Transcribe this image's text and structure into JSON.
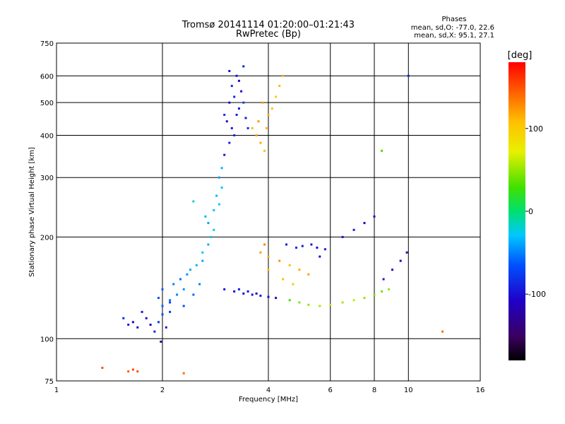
{
  "chart_data": {
    "type": "scatter",
    "title": "Tromsø 20141114 01:20:00–01:21:43",
    "subtitle": "RwPretec (Bp)",
    "xlabel": "Frequency [MHz]",
    "ylabel": "Stationary phase Virtual Height [km]",
    "x_scale": "log",
    "y_scale": "log",
    "xlim": [
      1,
      16
    ],
    "ylim": [
      75,
      750
    ],
    "x_ticks": [
      1,
      2,
      4,
      6,
      8,
      10,
      16
    ],
    "x_tick_labels": [
      "1",
      "2",
      "4",
      "6",
      "8",
      "10",
      "16"
    ],
    "y_ticks": [
      75,
      100,
      200,
      300,
      400,
      500,
      600,
      750
    ],
    "y_tick_labels": [
      "75",
      "100",
      "200",
      "300",
      "400",
      "500",
      "600",
      "750"
    ],
    "grid": true,
    "legend": {
      "title": "Phases",
      "lines": [
        "mean, sd,O: -77.0, 22.6",
        "mean, sd,X:  95.1, 27.1"
      ],
      "placement": "top-right"
    },
    "colorbar": {
      "label": "[deg]",
      "range": [
        -180,
        180
      ],
      "ticks": [
        100,
        0,
        -100
      ],
      "tick_labels": [
        "100",
        "0",
        "-100"
      ],
      "colormap": "rainbow (black-purple-blue-cyan-green-yellow-orange-red)",
      "placement": "right"
    },
    "clusters": [
      {
        "name": "low-foot",
        "points": [
          [
            1.9,
            105,
            -90
          ],
          [
            1.85,
            110,
            -110
          ],
          [
            1.95,
            112,
            -80
          ],
          [
            1.8,
            115,
            -100
          ],
          [
            2.0,
            118,
            -70
          ],
          [
            1.75,
            120,
            -95
          ],
          [
            1.7,
            108,
            -105
          ],
          [
            1.6,
            110,
            -90
          ],
          [
            1.55,
            115,
            -85
          ],
          [
            2.05,
            108,
            -95
          ],
          [
            2.1,
            120,
            -75
          ],
          [
            1.65,
            112,
            -110
          ],
          [
            1.98,
            98,
            -130
          ]
        ]
      },
      {
        "name": "lower-ramp",
        "points": [
          [
            2.0,
            125,
            -60
          ],
          [
            2.1,
            130,
            -55
          ],
          [
            2.2,
            135,
            -50
          ],
          [
            2.3,
            140,
            -45
          ],
          [
            2.0,
            140,
            -60
          ],
          [
            2.15,
            145,
            -50
          ],
          [
            2.25,
            150,
            -55
          ],
          [
            2.35,
            155,
            -45
          ],
          [
            2.4,
            160,
            -40
          ],
          [
            2.5,
            165,
            -35
          ],
          [
            2.6,
            170,
            -40
          ],
          [
            2.3,
            125,
            -65
          ],
          [
            2.45,
            135,
            -60
          ],
          [
            2.55,
            145,
            -50
          ],
          [
            2.1,
            128,
            -70
          ],
          [
            1.95,
            132,
            -65
          ]
        ]
      },
      {
        "name": "upper-ramp",
        "points": [
          [
            2.6,
            180,
            -30
          ],
          [
            2.7,
            190,
            -35
          ],
          [
            2.75,
            200,
            -30
          ],
          [
            2.8,
            210,
            -25
          ],
          [
            2.7,
            220,
            -40
          ],
          [
            2.65,
            230,
            -35
          ],
          [
            2.8,
            240,
            -30
          ],
          [
            2.9,
            250,
            -25
          ],
          [
            2.85,
            265,
            -35
          ],
          [
            2.95,
            280,
            -30
          ],
          [
            2.9,
            300,
            -40
          ],
          [
            2.95,
            320,
            -35
          ],
          [
            2.45,
            255,
            -20
          ]
        ]
      },
      {
        "name": "high-o-trace",
        "points": [
          [
            3.0,
            350,
            -95
          ],
          [
            3.1,
            380,
            -90
          ],
          [
            3.2,
            400,
            -85
          ],
          [
            3.15,
            420,
            -95
          ],
          [
            3.05,
            440,
            -100
          ],
          [
            3.25,
            460,
            -90
          ],
          [
            3.3,
            480,
            -95
          ],
          [
            3.1,
            500,
            -105
          ],
          [
            3.2,
            520,
            -90
          ],
          [
            3.35,
            540,
            -100
          ],
          [
            3.15,
            560,
            -85
          ],
          [
            3.3,
            580,
            -110
          ],
          [
            3.25,
            600,
            -95
          ],
          [
            3.1,
            620,
            -100
          ],
          [
            3.4,
            640,
            -90
          ],
          [
            3.0,
            460,
            -80
          ],
          [
            3.45,
            450,
            -95
          ],
          [
            3.5,
            420,
            -85
          ],
          [
            3.4,
            500,
            -75
          ]
        ]
      },
      {
        "name": "high-x-trace",
        "points": [
          [
            3.6,
            420,
            110
          ],
          [
            3.7,
            400,
            120
          ],
          [
            3.8,
            380,
            115
          ],
          [
            3.9,
            360,
            105
          ],
          [
            3.75,
            440,
            125
          ],
          [
            3.95,
            420,
            110
          ],
          [
            4.0,
            460,
            115
          ],
          [
            4.1,
            480,
            105
          ],
          [
            3.85,
            500,
            120
          ],
          [
            4.2,
            520,
            100
          ],
          [
            4.3,
            560,
            110
          ],
          [
            4.4,
            600,
            115
          ]
        ]
      },
      {
        "name": "e-region-o",
        "points": [
          [
            3.0,
            140,
            -100
          ],
          [
            3.2,
            138,
            -110
          ],
          [
            3.4,
            136,
            -105
          ],
          [
            3.6,
            135,
            -100
          ],
          [
            3.8,
            134,
            -95
          ],
          [
            4.0,
            133,
            -100
          ],
          [
            4.2,
            132,
            -105
          ],
          [
            3.3,
            140,
            -90
          ],
          [
            3.5,
            138,
            -95
          ],
          [
            3.7,
            136,
            -110
          ]
        ]
      },
      {
        "name": "mid-x",
        "points": [
          [
            3.8,
            180,
            120
          ],
          [
            4.0,
            175,
            115
          ],
          [
            4.3,
            170,
            125
          ],
          [
            4.6,
            165,
            110
          ],
          [
            4.9,
            160,
            115
          ],
          [
            5.2,
            155,
            120
          ],
          [
            4.4,
            150,
            105
          ],
          [
            4.7,
            145,
            100
          ],
          [
            4.0,
            160,
            110
          ],
          [
            3.9,
            190,
            130
          ]
        ]
      },
      {
        "name": "mid-o",
        "points": [
          [
            4.5,
            190,
            -90
          ],
          [
            5.0,
            188,
            -95
          ],
          [
            5.5,
            186,
            -100
          ],
          [
            5.8,
            184,
            -90
          ],
          [
            4.8,
            186,
            -85
          ],
          [
            5.3,
            190,
            -95
          ],
          [
            5.6,
            175,
            -100
          ]
        ]
      },
      {
        "name": "lower-arc",
        "points": [
          [
            4.6,
            130,
            30
          ],
          [
            4.9,
            128,
            45
          ],
          [
            5.2,
            126,
            50
          ],
          [
            5.6,
            125,
            55
          ],
          [
            6.0,
            126,
            60
          ],
          [
            6.5,
            128,
            55
          ],
          [
            7.0,
            130,
            60
          ],
          [
            7.5,
            132,
            50
          ],
          [
            8.0,
            135,
            45
          ],
          [
            8.4,
            138,
            40
          ],
          [
            8.8,
            140,
            50
          ]
        ]
      },
      {
        "name": "far-right",
        "points": [
          [
            6.5,
            200,
            -100
          ],
          [
            7.0,
            210,
            -95
          ],
          [
            7.5,
            220,
            -105
          ],
          [
            8.0,
            230,
            -100
          ],
          [
            8.5,
            150,
            -95
          ],
          [
            9.0,
            160,
            -100
          ],
          [
            9.5,
            170,
            -110
          ],
          [
            9.9,
            180,
            -120
          ],
          [
            10.0,
            600,
            -90
          ],
          [
            8.4,
            360,
            30
          ],
          [
            12.5,
            105,
            140
          ]
        ]
      },
      {
        "name": "foot-trace",
        "points": [
          [
            1.35,
            82,
            150
          ],
          [
            1.6,
            80,
            145
          ],
          [
            1.65,
            81,
            155
          ],
          [
            1.7,
            80,
            150
          ],
          [
            2.3,
            79,
            140
          ]
        ]
      }
    ]
  }
}
